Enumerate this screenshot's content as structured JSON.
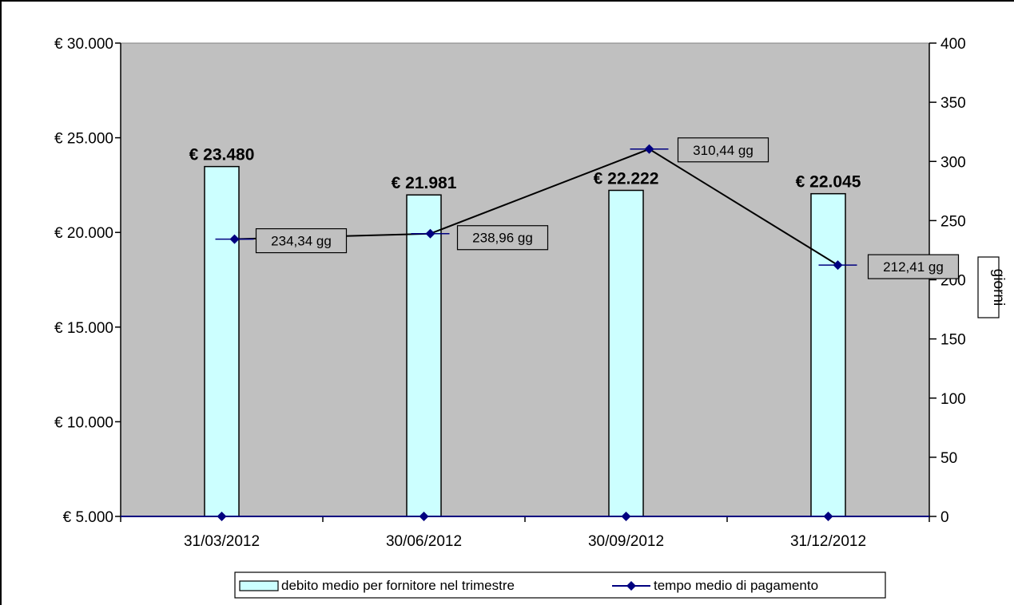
{
  "chart_data": {
    "type": "bar+line",
    "categories": [
      "31/03/2012",
      "30/06/2012",
      "30/09/2012",
      "31/12/2012"
    ],
    "series": [
      {
        "name": "debito medio per fornitore nel trimestre",
        "type": "bar",
        "axis": "left",
        "values": [
          23480,
          21981,
          22222,
          22045
        ],
        "labels": [
          "€ 23.480",
          "€ 21.981",
          "€ 22.222",
          "€ 22.045"
        ]
      },
      {
        "name": "tempo medio di pagamento",
        "type": "line",
        "axis": "right",
        "values": [
          234.34,
          238.96,
          310.44,
          212.41
        ],
        "labels": [
          "234,34 gg",
          "238,96 gg",
          "310,44 gg",
          "212,41 gg"
        ],
        "baseline_values": [
          0,
          0,
          0,
          0
        ]
      }
    ],
    "left_axis": {
      "min": 5000,
      "max": 30000,
      "ticks": [
        30000,
        25000,
        20000,
        15000,
        10000,
        5000
      ],
      "tick_labels": [
        "€ 30.000",
        "€ 25.000",
        "€ 20.000",
        "€ 15.000",
        "€ 10.000",
        "€ 5.000"
      ]
    },
    "right_axis": {
      "min": 0,
      "max": 400,
      "ticks": [
        400,
        350,
        300,
        250,
        200,
        150,
        100,
        50,
        0
      ],
      "tick_labels": [
        "400",
        "350",
        "300",
        "250",
        "200",
        "150",
        "100",
        "50",
        "0"
      ],
      "title": "giorni"
    },
    "legend": {
      "position": "bottom",
      "entries": [
        "debito medio per fornitore nel trimestre",
        "tempo medio di pagamento"
      ]
    },
    "grid": false,
    "colors": {
      "plot_bg": "#c0c0c0",
      "bar_fill": "#ccffff",
      "line": "#000000",
      "marker": "#000080"
    }
  }
}
